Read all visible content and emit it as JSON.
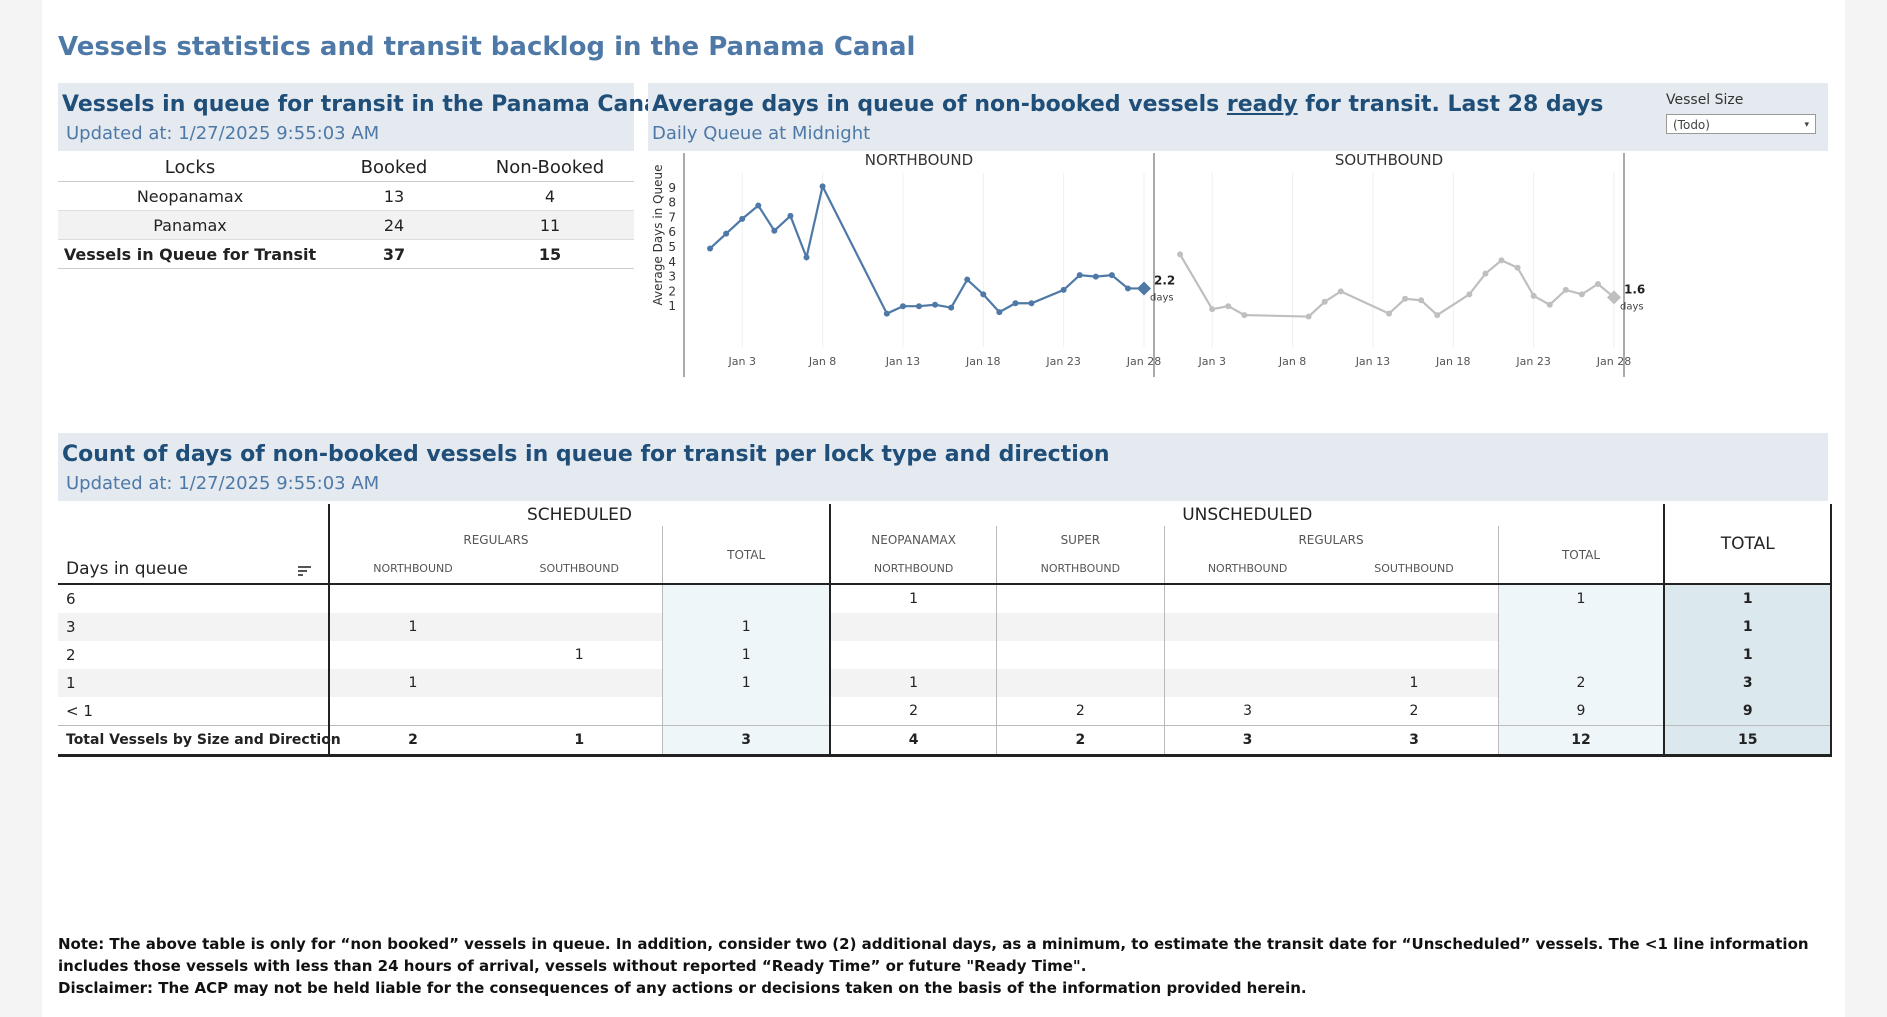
{
  "dashboard": {
    "title": "Vessels statistics and transit backlog in the Panama Canal"
  },
  "queue_panel": {
    "title": "Vessels in queue for transit in the Panama Canal",
    "updated": "Updated at:  1/27/2025 9:55:03 AM",
    "columns": [
      "Locks",
      "Booked",
      "Non-Booked"
    ],
    "rows": [
      {
        "lock": "Neopanamax",
        "booked": "13",
        "non_booked": "4"
      },
      {
        "lock": "Panamax",
        "booked": "24",
        "non_booked": "11"
      }
    ],
    "total": {
      "lock": "Vessels in Queue for Transit",
      "booked": "37",
      "non_booked": "15"
    }
  },
  "avg_panel": {
    "title_pre": "Average days in queue of non-booked vessels ",
    "title_underlined": "ready",
    "title_post": " for transit. Last 28 days",
    "subtitle": "Daily Queue at Midnight",
    "filter": {
      "label": "Vessel Size",
      "value": "(Todo)",
      "arrow_icon": "▾"
    }
  },
  "chart_data": {
    "type": "line",
    "ylabel": "Average Days in Queue",
    "yticks": [
      1,
      2,
      3,
      4,
      5,
      6,
      7,
      8,
      9
    ],
    "ylim": [
      0,
      10
    ],
    "xlim": [
      0,
      28
    ],
    "xtick_days": [
      3,
      8,
      13,
      18,
      23,
      28
    ],
    "xtick_labels": [
      "Jan 3",
      "Jan 8",
      "Jan 13",
      "Jan 18",
      "Jan 23",
      "Jan 28"
    ],
    "panels": [
      {
        "name": "NORTHBOUND",
        "color": "#4e79a7",
        "days": [
          1,
          2,
          3,
          4,
          5,
          6,
          7,
          8,
          12,
          13,
          14,
          15,
          16,
          17,
          18,
          19,
          20,
          21,
          23,
          24,
          25,
          26,
          27,
          28
        ],
        "values": [
          4.9,
          5.9,
          6.9,
          7.8,
          6.1,
          7.1,
          4.3,
          9.1,
          0.5,
          1.0,
          1.0,
          1.1,
          0.9,
          2.8,
          1.8,
          0.6,
          1.2,
          1.2,
          2.1,
          3.1,
          3.0,
          3.1,
          2.2,
          2.2
        ],
        "last_label": "2.2",
        "last_unit": "days"
      },
      {
        "name": "SOUTHBOUND",
        "color": "#bfbfbf",
        "days": [
          1,
          3,
          4,
          5,
          9,
          10,
          11,
          14,
          15,
          16,
          17,
          19,
          20,
          21,
          22,
          23,
          24,
          25,
          26,
          27,
          28
        ],
        "values": [
          4.5,
          0.8,
          1.0,
          0.4,
          0.3,
          1.3,
          2.0,
          0.5,
          1.5,
          1.4,
          0.4,
          1.8,
          3.2,
          4.1,
          3.6,
          1.7,
          1.1,
          2.1,
          1.8,
          2.5,
          1.6
        ],
        "last_label": "1.6",
        "last_unit": "days"
      }
    ]
  },
  "count_panel": {
    "title": "Count of days of non-booked vessels in queue for transit per lock type and direction",
    "updated": "Updated at:  1/27/2025 9:55:03 AM",
    "group_scheduled": "SCHEDULED",
    "group_unscheduled": "UNSCHEDULED",
    "group_total": "TOTAL",
    "sub_regulars": "REGULARS",
    "sub_neopanamax": "NEOPANAMAX",
    "sub_super": "SUPER",
    "sub_total": "TOTAL",
    "dir_northbound": "NORTHBOUND",
    "dir_southbound": "SOUTHBOUND",
    "row_header": "Days in queue",
    "sort_icon": "sort-icon",
    "rows": [
      {
        "days": "6",
        "v": [
          "",
          "",
          "",
          "1",
          "",
          "",
          "",
          "1",
          "1"
        ]
      },
      {
        "days": "3",
        "v": [
          "1",
          "",
          "1",
          "",
          "",
          "",
          "",
          "",
          "1"
        ]
      },
      {
        "days": "2",
        "v": [
          "",
          "1",
          "1",
          "",
          "",
          "",
          "",
          "",
          "1"
        ]
      },
      {
        "days": "1",
        "v": [
          "1",
          "",
          "1",
          "1",
          "",
          "",
          "1",
          "2",
          "3"
        ]
      },
      {
        "days": "< 1",
        "v": [
          "",
          "",
          "",
          "2",
          "2",
          "3",
          "2",
          "9",
          "9"
        ]
      }
    ],
    "total": {
      "label": "Total Vessels by Size and Direction",
      "v": [
        "2",
        "1",
        "3",
        "4",
        "2",
        "3",
        "3",
        "12",
        "15"
      ]
    }
  },
  "footer": {
    "note": "Note:  The above table is only for “non booked” vessels in queue. In addition, consider two (2) additional days, as a minimum, to estimate the transit date for “Unscheduled” vessels.  The <1 line information includes those vessels with less than 24 hours of arrival, vessels without reported “Ready Time” or future \"Ready Time\".",
    "disclaimer": "Disclaimer: The ACP may not be held liable for the consequences of any actions or decisions taken on the basis of the information provided herein."
  }
}
